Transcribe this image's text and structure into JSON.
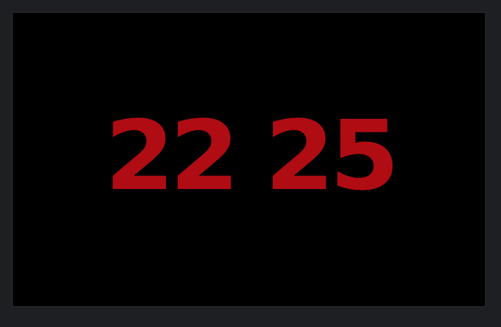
{
  "clock": {
    "hours": "22",
    "minutes": "25",
    "digit_color": "#b00c13"
  },
  "colors": {
    "frame": "#1e1f23",
    "screen": "#000000"
  }
}
